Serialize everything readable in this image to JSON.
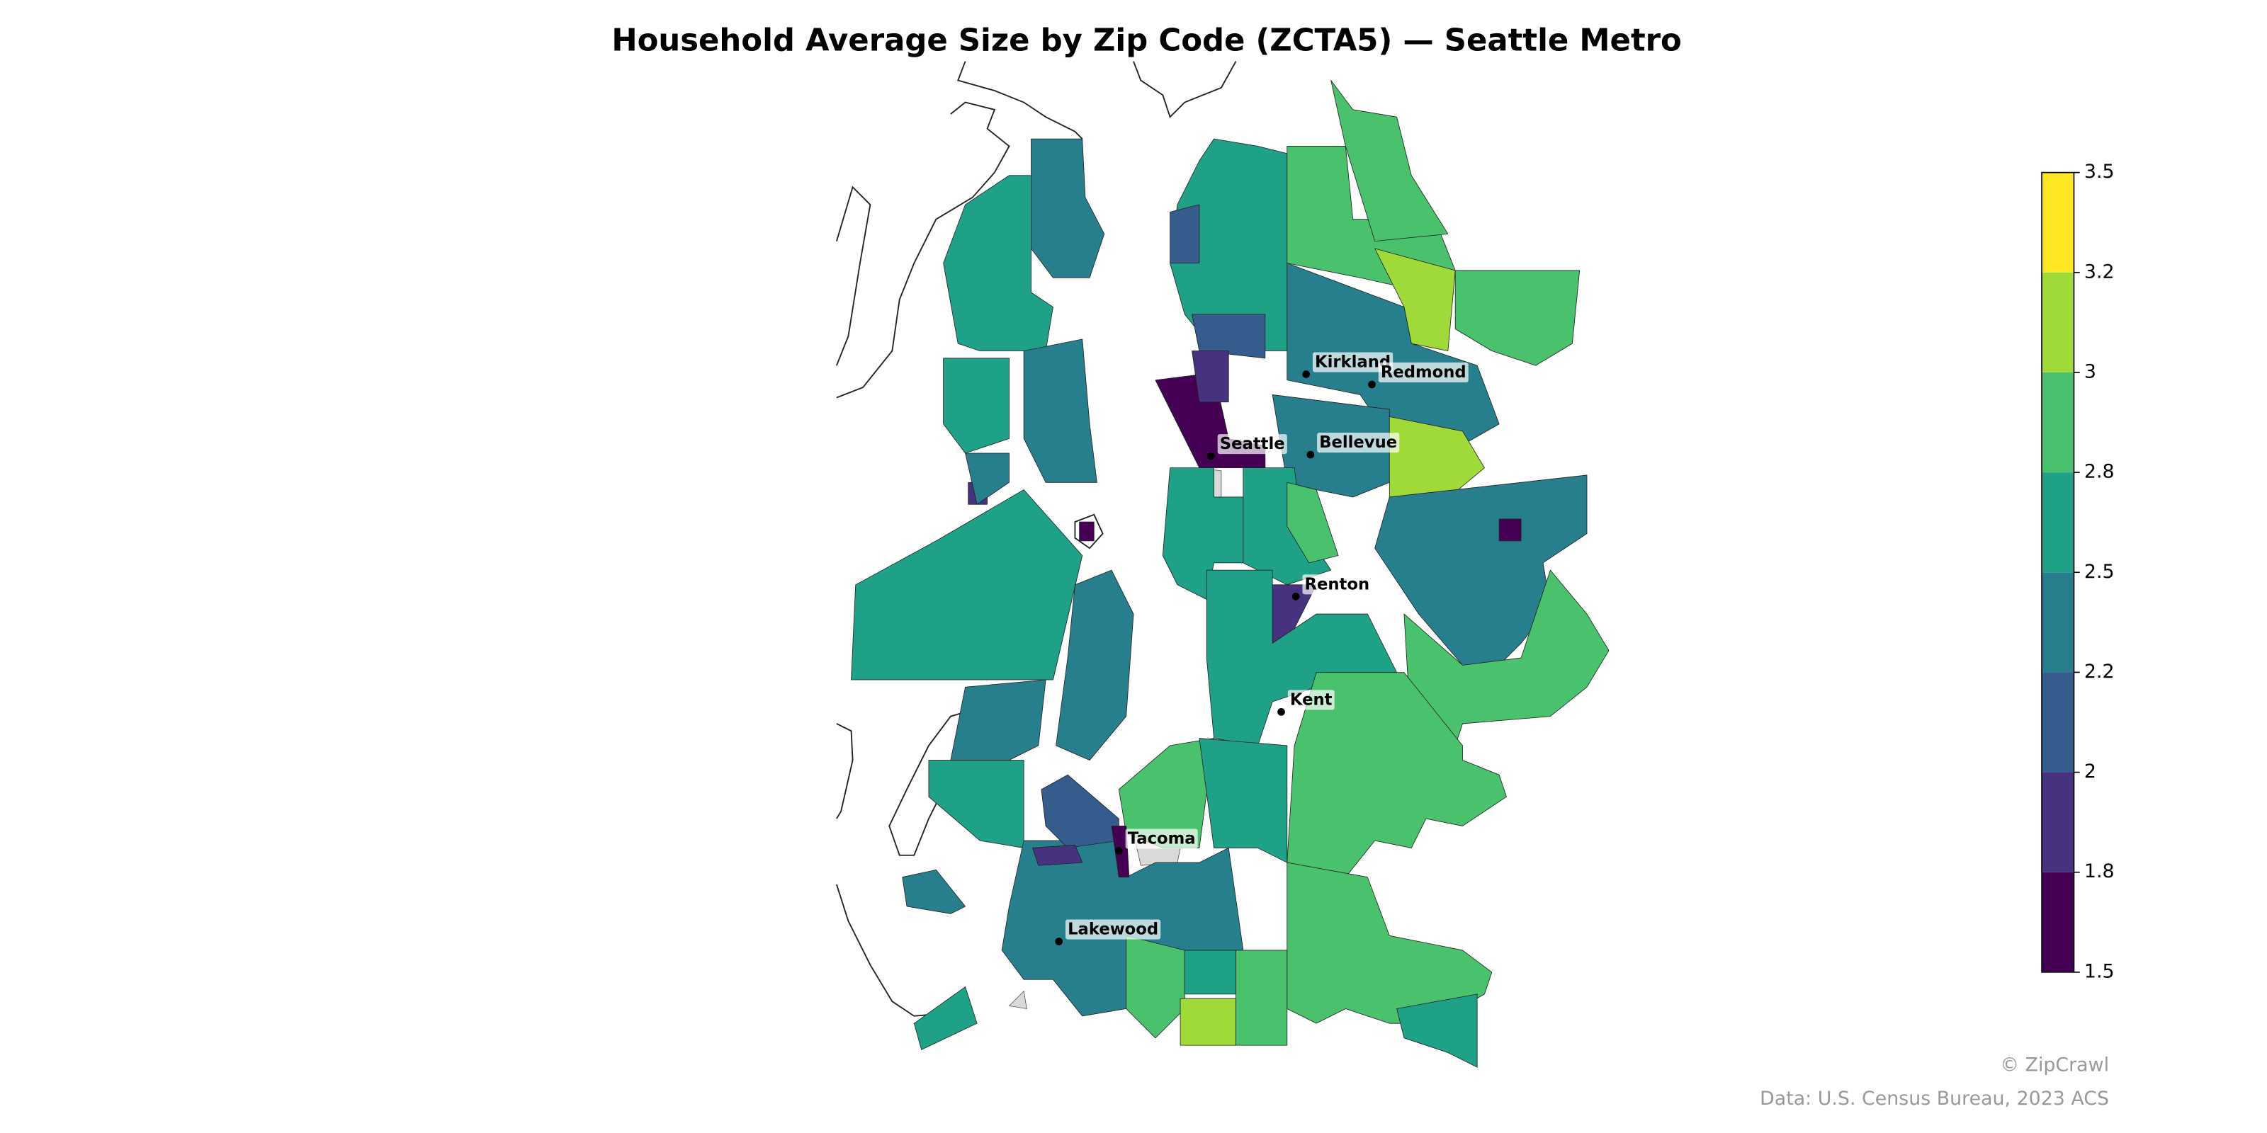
{
  "chart_data": {
    "type": "choropleth",
    "title": "Household Average Size by Zip Code (ZCTA5) — Seattle Metro",
    "colorbar": {
      "ticks": [
        1.5,
        1.8,
        2.0,
        2.2,
        2.5,
        2.8,
        3.0,
        3.2,
        3.5
      ],
      "colors": [
        "#440154",
        "#46327e",
        "#365c8d",
        "#277f8e",
        "#1fa187",
        "#4ac16d",
        "#a0da39",
        "#fde725"
      ]
    },
    "regions": [
      {
        "value": 2.4
      },
      {
        "value": 2.6
      },
      {
        "value": 2.4
      },
      {
        "value": 2.6
      },
      {
        "value": 2.6
      },
      {
        "value": 2.4
      },
      {
        "value": 2.4
      },
      {
        "value": 2.6
      },
      {
        "value": 2.6
      },
      {
        "value": 2.1
      },
      {
        "value": 2.1
      },
      {
        "value": 1.6
      },
      {
        "value": 1.9
      },
      {
        "value": 2.9
      },
      {
        "value": 2.9
      },
      {
        "value": 3.1
      },
      {
        "value": 2.9
      },
      {
        "value": 2.4
      },
      {
        "value": 2.4
      },
      {
        "value": 3.1
      },
      {
        "value": 2.4
      },
      {
        "value": 1.6
      },
      {
        "value": 2.9
      },
      {
        "value": 2.6
      },
      {
        "value": 2.7
      },
      {
        "value": 2.9
      },
      {
        "value": 1.9
      },
      {
        "value": 1.6
      },
      {
        "value": 2.6
      },
      {
        "value": 2.9
      },
      {
        "value": 2.9
      },
      {
        "value": 2.6
      },
      {
        "value": 2.9
      },
      {
        "value": 2.4
      },
      {
        "value": 2.1
      },
      {
        "value": 1.9
      },
      {
        "value": 1.6
      },
      {
        "value": 2.9
      },
      {
        "value": 2.6
      },
      {
        "value": 3.1
      },
      {
        "value": 2.9
      },
      {
        "value": 2.6
      },
      {
        "value": 2.4
      },
      {
        "value": 2.6
      },
      {
        "value": 1.6
      },
      {
        "value": 1.9
      },
      {
        "value": 2.4
      }
    ],
    "cities": [
      {
        "label": "Seattle"
      },
      {
        "label": "Bellevue"
      },
      {
        "label": "Kirkland"
      },
      {
        "label": "Redmond"
      },
      {
        "label": "Renton"
      },
      {
        "label": "Kent"
      },
      {
        "label": "Tacoma"
      },
      {
        "label": "Lakewood"
      }
    ],
    "credit": "© ZipCrawl",
    "source": "Data: U.S. Census Bureau, 2023 ACS"
  }
}
